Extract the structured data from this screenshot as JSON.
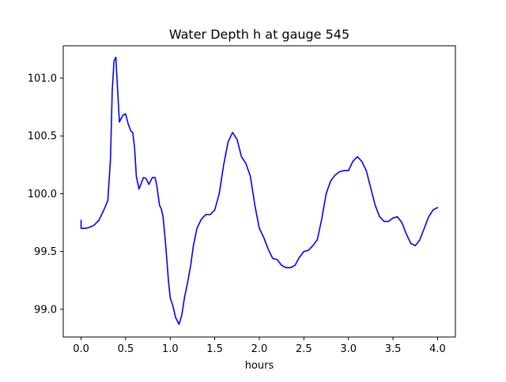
{
  "chart_data": {
    "type": "line",
    "title": "Water Depth h at gauge 545",
    "xlabel": "hours",
    "ylabel": "",
    "xlim": [
      -0.2,
      4.2
    ],
    "ylim": [
      98.76,
      101.28
    ],
    "xticks": [
      0.0,
      0.5,
      1.0,
      1.5,
      2.0,
      2.5,
      3.0,
      3.5,
      4.0
    ],
    "xtick_labels": [
      "0.0",
      "0.5",
      "1.0",
      "1.5",
      "2.0",
      "2.5",
      "3.0",
      "3.5",
      "4.0"
    ],
    "yticks": [
      99.0,
      99.5,
      100.0,
      100.5,
      101.0
    ],
    "ytick_labels": [
      "99.0",
      "99.5",
      "100.0",
      "100.5",
      "101.0"
    ],
    "grid": false,
    "legend": "none",
    "series": [
      {
        "color": "#0000ff",
        "x": [
          0.0,
          0.0,
          0.05,
          0.1,
          0.15,
          0.2,
          0.25,
          0.3,
          0.33,
          0.35,
          0.37,
          0.39,
          0.41,
          0.43,
          0.45,
          0.47,
          0.5,
          0.53,
          0.56,
          0.58,
          0.6,
          0.62,
          0.65,
          0.68,
          0.7,
          0.73,
          0.76,
          0.8,
          0.83,
          0.85,
          0.88,
          0.9,
          0.92,
          0.95,
          0.98,
          1.0,
          1.03,
          1.06,
          1.1,
          1.13,
          1.16,
          1.2,
          1.23,
          1.26,
          1.3,
          1.35,
          1.4,
          1.45,
          1.5,
          1.55,
          1.6,
          1.65,
          1.7,
          1.75,
          1.8,
          1.85,
          1.9,
          1.95,
          2.0,
          2.05,
          2.1,
          2.15,
          2.2,
          2.25,
          2.3,
          2.35,
          2.4,
          2.45,
          2.5,
          2.55,
          2.6,
          2.65,
          2.7,
          2.75,
          2.8,
          2.85,
          2.9,
          2.95,
          3.0,
          3.05,
          3.1,
          3.15,
          3.2,
          3.25,
          3.3,
          3.35,
          3.4,
          3.45,
          3.5,
          3.55,
          3.6,
          3.65,
          3.7,
          3.75,
          3.8,
          3.85,
          3.9,
          3.95,
          4.0
        ],
        "y": [
          99.77,
          99.7,
          99.7,
          99.71,
          99.73,
          99.77,
          99.85,
          99.94,
          100.3,
          100.9,
          101.15,
          101.18,
          100.9,
          100.62,
          100.65,
          100.68,
          100.69,
          100.6,
          100.54,
          100.53,
          100.4,
          100.15,
          100.04,
          100.1,
          100.14,
          100.13,
          100.08,
          100.14,
          100.14,
          100.07,
          99.9,
          99.87,
          99.8,
          99.55,
          99.25,
          99.1,
          99.03,
          98.93,
          98.87,
          98.95,
          99.1,
          99.25,
          99.38,
          99.55,
          99.7,
          99.78,
          99.82,
          99.82,
          99.86,
          100.0,
          100.25,
          100.45,
          100.53,
          100.47,
          100.32,
          100.26,
          100.15,
          99.9,
          99.7,
          99.62,
          99.52,
          99.44,
          99.43,
          99.38,
          99.36,
          99.36,
          99.38,
          99.45,
          99.5,
          99.51,
          99.55,
          99.6,
          99.78,
          100.0,
          100.11,
          100.16,
          100.19,
          100.2,
          100.2,
          100.28,
          100.32,
          100.28,
          100.2,
          100.05,
          99.9,
          99.8,
          99.76,
          99.76,
          99.79,
          99.8,
          99.75,
          99.65,
          99.57,
          99.55,
          99.6,
          99.7,
          99.8,
          99.86,
          99.88
        ]
      }
    ]
  }
}
